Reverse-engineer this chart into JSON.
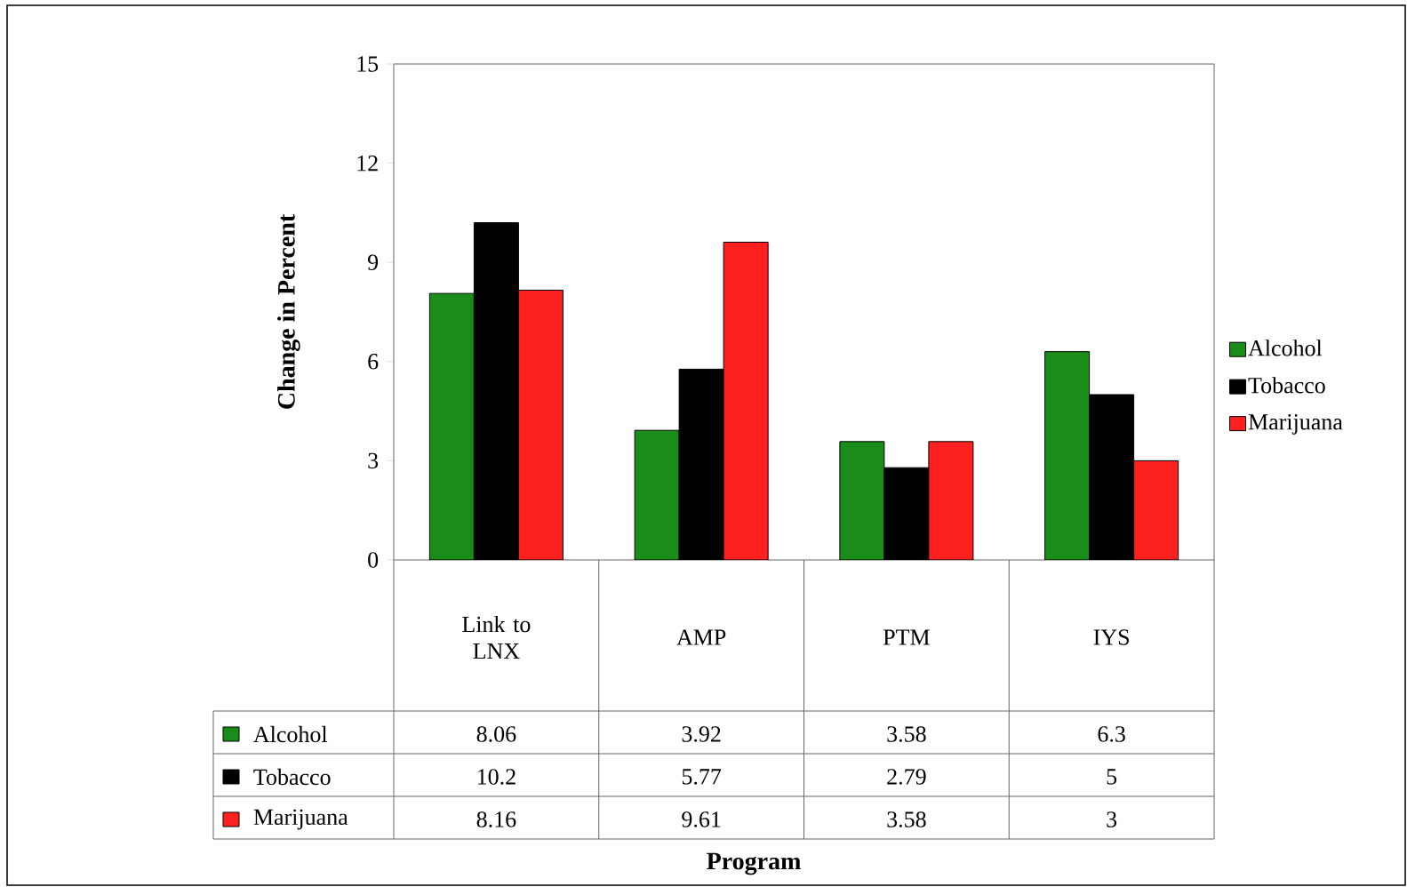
{
  "chart_data": {
    "type": "bar",
    "annotations": [
      "Program"
    ],
    "ylabel": "Change in Percent",
    "categories": [
      "Link to LNX",
      "AMP",
      "PTM",
      "IYS"
    ],
    "series": [
      {
        "name": "Alcohol",
        "color": "#1a8c1a",
        "values": [
          8.06,
          3.92,
          3.58,
          6.3
        ]
      },
      {
        "name": "Tobacco",
        "color": "#000000",
        "values": [
          10.2,
          5.77,
          2.79,
          5
        ]
      },
      {
        "name": "Marijuana",
        "color": "#ff2020",
        "values": [
          8.16,
          9.61,
          3.58,
          3
        ]
      }
    ],
    "ylim": [
      0,
      15
    ],
    "yticks": [
      0,
      3,
      6,
      9,
      12,
      15
    ],
    "data_labels": true,
    "legend": "right",
    "grid": false
  }
}
